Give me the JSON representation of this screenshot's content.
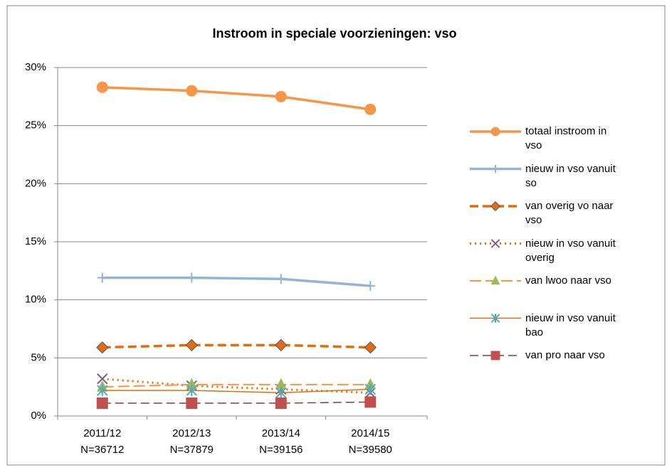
{
  "chart_data": {
    "type": "line",
    "title": "Instroom in speciale voorzieningen: vso",
    "categories": [
      [
        "2011/12",
        "N=36712"
      ],
      [
        "2012/13",
        "N=37879"
      ],
      [
        "2013/14",
        "N=39156"
      ],
      [
        "2014/15",
        "N=39580"
      ]
    ],
    "ylim": [
      0,
      30
    ],
    "yticks": [
      {
        "value": 0,
        "label": "0%"
      },
      {
        "value": 5,
        "label": "5%"
      },
      {
        "value": 10,
        "label": "10%"
      },
      {
        "value": 15,
        "label": "15%"
      },
      {
        "value": 20,
        "label": "20%"
      },
      {
        "value": 25,
        "label": "25%"
      },
      {
        "value": 30,
        "label": "30%"
      }
    ],
    "grid": true,
    "legend": "right",
    "series": [
      {
        "name": "totaal instroom in vso",
        "color": "#f79646",
        "marker": "circle",
        "marker_color": "#f79646",
        "dash": "solid",
        "width": 3.5,
        "values": [
          28.3,
          28.0,
          27.5,
          26.4
        ]
      },
      {
        "name": "nieuw in vso vanuit so",
        "color": "#95b3d7",
        "marker": "plus",
        "marker_color": "#95b3d7",
        "dash": "solid",
        "width": 3.5,
        "values": [
          11.9,
          11.9,
          11.8,
          11.2
        ]
      },
      {
        "name": "van overig vo naar vso",
        "color": "#e46c0a",
        "marker": "diamond",
        "marker_color": "#e46c0a",
        "dash": "dash",
        "width": 3.5,
        "values": [
          5.9,
          6.1,
          6.1,
          5.9
        ]
      },
      {
        "name": "nieuw in vso vanuit overig",
        "color": "#e46c0a",
        "marker": "x",
        "marker_color": "#7f6084",
        "dash": "dot",
        "width": 3,
        "values": [
          3.2,
          2.6,
          2.3,
          2.0
        ]
      },
      {
        "name": "van lwoo naar vso",
        "color": "#f79646",
        "marker": "triangle",
        "marker_color": "#9bbb59",
        "dash": "longdash",
        "width": 2,
        "values": [
          2.5,
          2.7,
          2.7,
          2.7
        ]
      },
      {
        "name": "nieuw in vso vanuit bao",
        "color": "#e46c0a",
        "marker": "star",
        "marker_color": "#4bacc6",
        "dash": "solid",
        "width": 1.5,
        "values": [
          2.2,
          2.2,
          2.0,
          2.3
        ]
      },
      {
        "name": "van pro naar vso",
        "color": "#953735",
        "marker": "square",
        "marker_color": "#c0504d",
        "dash": "dash",
        "width": 1.5,
        "values": [
          1.1,
          1.1,
          1.1,
          1.2
        ]
      }
    ]
  }
}
